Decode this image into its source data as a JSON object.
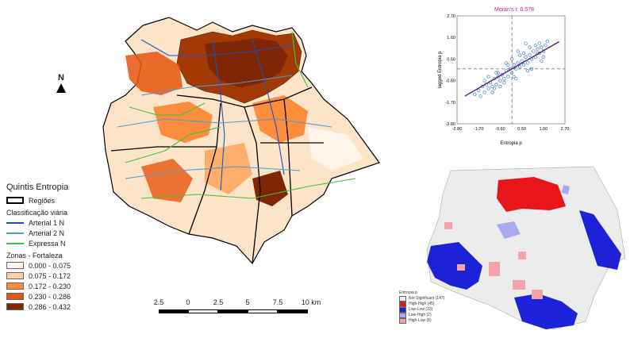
{
  "north_label": "N",
  "legend": {
    "title": "Quintis Entropia",
    "regioes_label": "Regiões",
    "road_section": "Classificação viária",
    "roads": [
      {
        "label": "Arterial 1 N",
        "color": "#1f4fbf"
      },
      {
        "label": "Arterial 2 N",
        "color": "#4a9bd6"
      },
      {
        "label": "Expressa N",
        "color": "#3ec43e"
      }
    ],
    "zones_section": "Zonas - Fortaleza",
    "classes": [
      {
        "label": "0.000 - 0.075",
        "color": "#fff5eb"
      },
      {
        "label": "0.075 - 0.172",
        "color": "#fdd0a2"
      },
      {
        "label": "0.172 - 0.230",
        "color": "#fd8d3c"
      },
      {
        "label": "0.230 - 0.286",
        "color": "#e6550d"
      },
      {
        "label": "0.286 - 0.432",
        "color": "#7f2704"
      }
    ]
  },
  "scale_bar": {
    "labels": [
      "2.5",
      "0",
      "2.5",
      "5",
      "7.5",
      "10 km"
    ]
  },
  "moran": {
    "title": "Moran's I: 0.578",
    "xlabel": "Entropia p",
    "ylabel": "lagged Entropia p",
    "ticks": [
      "-2.80",
      "-1.70",
      "-0.60",
      "0.50",
      "1.60",
      "2.70"
    ],
    "y_ticks": [
      "2.70",
      "1.60",
      "0.50",
      "-0.60",
      "-1.70",
      "-2.80"
    ],
    "slope": 0.578,
    "title_color": "#b0208f",
    "point_color": "#3a7fd0",
    "line_color": "#5a1a7a"
  },
  "lisa_legend": {
    "title": "Entropia p",
    "items": [
      {
        "label": "Not Significant (147)",
        "color": "#eeeeee"
      },
      {
        "label": "High-High (45)",
        "color": "#e8161b"
      },
      {
        "label": "Low-Low (33)",
        "color": "#1d21d8"
      },
      {
        "label": "Low-High (2)",
        "color": "#a9a9f0"
      },
      {
        "label": "High-Low (6)",
        "color": "#f4a3a8"
      }
    ]
  },
  "chart_data": {
    "type": "scatter",
    "title": "Moran's I: 0.578",
    "xlabel": "Entropia p",
    "ylabel": "lagged Entropia p",
    "xlim": [
      -2.8,
      2.7
    ],
    "ylim": [
      -2.8,
      2.7
    ],
    "x": [
      -1.9,
      -1.7,
      -1.6,
      -1.5,
      -1.4,
      -1.3,
      -1.2,
      -1.1,
      -1.0,
      -0.9,
      -0.8,
      -0.7,
      -0.6,
      -0.5,
      -0.4,
      -0.3,
      -0.2,
      -0.1,
      0.0,
      0.1,
      0.2,
      0.3,
      0.4,
      0.5,
      0.6,
      0.7,
      0.8,
      0.9,
      1.0,
      1.1,
      1.2,
      1.3,
      1.4,
      1.5,
      1.6,
      1.7,
      1.8,
      -1.4,
      -1.0,
      -0.6,
      -0.2,
      0.2,
      0.6,
      1.0,
      1.4,
      -1.2,
      -0.8,
      -0.4,
      0.0,
      0.4,
      0.8,
      1.2,
      1.6,
      -0.9,
      -0.3,
      0.3,
      0.9,
      1.5,
      -0.7,
      0.1,
      0.7,
      1.3
    ],
    "y": [
      -1.3,
      -1.1,
      -1.4,
      -0.9,
      -1.2,
      -0.8,
      -1.0,
      -0.7,
      -0.9,
      -0.5,
      -0.8,
      -0.4,
      -0.6,
      -0.3,
      -0.5,
      -0.1,
      -0.4,
      0.0,
      -0.2,
      0.2,
      0.0,
      0.3,
      0.1,
      0.4,
      0.2,
      0.6,
      0.3,
      0.7,
      0.5,
      0.9,
      0.6,
      1.0,
      0.8,
      1.1,
      0.9,
      1.2,
      1.4,
      -0.6,
      -1.2,
      -0.9,
      0.2,
      -0.5,
      0.8,
      0.0,
      1.3,
      -0.4,
      -0.2,
      -0.7,
      0.5,
      0.7,
      -0.1,
      1.2,
      0.6,
      -1.0,
      0.3,
      0.9,
      1.1,
      0.4,
      -0.2,
      -0.4,
      1.3,
      0.8
    ]
  }
}
